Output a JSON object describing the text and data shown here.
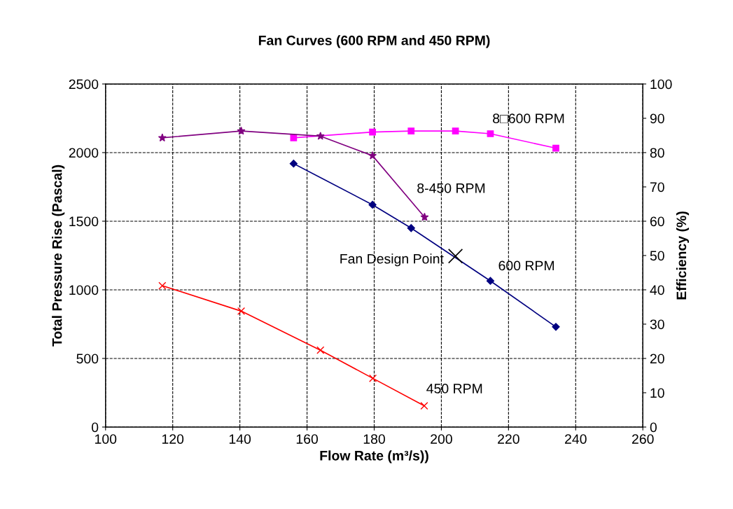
{
  "chart_data": {
    "type": "line",
    "title": "Fan Curves (600 RPM and 450 RPM)",
    "xlabel": "Flow Rate (m³/s))",
    "ylabel": "Total Pressure Rise (Pascal)",
    "y2label": "Efficiency (%)",
    "xlim": [
      100,
      260
    ],
    "xticks": [
      100,
      120,
      140,
      160,
      180,
      200,
      220,
      240,
      260
    ],
    "ylim": [
      0,
      2500
    ],
    "yticks": [
      0,
      500,
      1000,
      1500,
      2000,
      2500
    ],
    "y2lim": [
      0,
      100
    ],
    "y2ticks": [
      0,
      10,
      20,
      30,
      40,
      50,
      60,
      70,
      80,
      90,
      100
    ],
    "grid": true,
    "series": [
      {
        "name": "600 RPM",
        "color": "#000080",
        "marker": "diamond",
        "x": [
          156.0,
          179.5,
          191.0,
          214.6,
          234.1
        ],
        "values": [
          1920,
          1620,
          1450,
          1065,
          730
        ]
      },
      {
        "name": "450 RPM",
        "color": "#ff0000",
        "marker": "cross",
        "x": [
          116.9,
          140.4,
          164.0,
          179.6,
          194.9
        ],
        "values": [
          1030,
          845,
          560,
          355,
          155
        ]
      },
      {
        "name": "8□600 RPM",
        "color": "#ff00ff",
        "marker": "square",
        "axis": "y2",
        "x": [
          156.0,
          179.5,
          191.0,
          204.2,
          214.6,
          234.1
        ],
        "values": [
          84.3,
          86.0,
          86.3,
          86.3,
          85.5,
          81.3
        ]
      },
      {
        "name": "8-450 RPM",
        "color": "#800080",
        "marker": "star",
        "axis": "y2",
        "x": [
          116.9,
          140.4,
          164.0,
          179.5,
          195.0
        ],
        "values": [
          84.3,
          86.3,
          84.8,
          79.1,
          61.2
        ]
      },
      {
        "type": "scatter",
        "color": "#000000",
        "marker": "cross",
        "x": [
          204.2
        ],
        "values": [
          1246
        ]
      }
    ],
    "annotations": [
      {
        "text": "Fan Design Point",
        "x": 204.2,
        "y": 1246
      }
    ]
  }
}
